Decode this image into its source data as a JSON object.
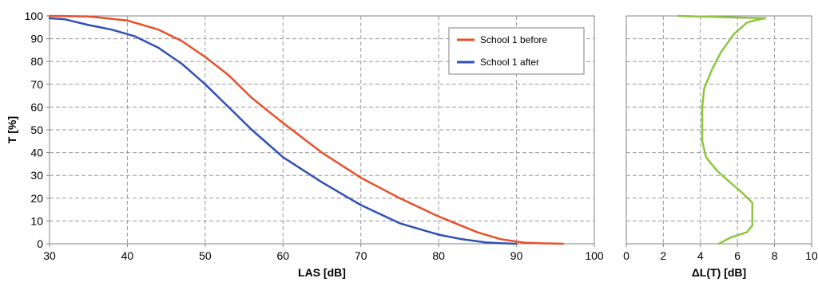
{
  "chart_data": [
    {
      "type": "line",
      "xlabel": "LAS [dB]",
      "ylabel": "T [%]",
      "xlim": [
        30,
        100
      ],
      "ylim": [
        0,
        100
      ],
      "x_ticks": [
        "30",
        "40",
        "50",
        "60",
        "70",
        "80",
        "90",
        "100"
      ],
      "y_ticks": [
        "0",
        "10",
        "20",
        "30",
        "40",
        "50",
        "60",
        "70",
        "80",
        "90",
        "100"
      ],
      "grid": true,
      "legend_position": "top-right",
      "series": [
        {
          "name": "School 1 before",
          "color": "#e8502a",
          "points": [
            [
              30,
              100
            ],
            [
              35,
              99.8
            ],
            [
              40,
              98
            ],
            [
              44,
              94
            ],
            [
              47,
              89
            ],
            [
              50,
              82
            ],
            [
              53,
              74
            ],
            [
              56,
              64
            ],
            [
              60,
              53
            ],
            [
              65,
              40
            ],
            [
              70,
              29
            ],
            [
              75,
              20
            ],
            [
              80,
              12
            ],
            [
              85,
              5
            ],
            [
              88,
              2
            ],
            [
              91,
              0.5
            ],
            [
              93,
              0.2
            ],
            [
              96,
              0
            ]
          ]
        },
        {
          "name": "School 1 after",
          "color": "#3050b4",
          "points": [
            [
              30,
              99
            ],
            [
              32,
              98.5
            ],
            [
              35,
              96
            ],
            [
              38,
              94
            ],
            [
              41,
              91
            ],
            [
              44,
              86
            ],
            [
              47,
              79
            ],
            [
              50,
              70
            ],
            [
              53,
              60
            ],
            [
              56,
              50
            ],
            [
              60,
              38
            ],
            [
              65,
              27
            ],
            [
              70,
              17
            ],
            [
              75,
              9
            ],
            [
              80,
              4
            ],
            [
              83,
              2
            ],
            [
              86,
              0.6
            ],
            [
              88,
              0.2
            ],
            [
              90,
              0
            ]
          ]
        }
      ]
    },
    {
      "type": "line",
      "xlabel": "ΔL(T) [dB]",
      "ylabel": "",
      "xlim": [
        0,
        10
      ],
      "ylim": [
        0,
        100
      ],
      "x_ticks": [
        "0",
        "2",
        "4",
        "6",
        "8",
        "10"
      ],
      "grid": true,
      "series": [
        {
          "name": "",
          "color": "#8cc63f",
          "points": [
            [
              5,
              0
            ],
            [
              5.7,
              3
            ],
            [
              6.5,
              5
            ],
            [
              6.8,
              8
            ],
            [
              6.8,
              18
            ],
            [
              6.3,
              22
            ],
            [
              5.6,
              27
            ],
            [
              4.9,
              32
            ],
            [
              4.3,
              38
            ],
            [
              4.1,
              45
            ],
            [
              4.1,
              60
            ],
            [
              4.2,
              68
            ],
            [
              4.6,
              76
            ],
            [
              5.1,
              84
            ],
            [
              5.8,
              92
            ],
            [
              6.5,
              97
            ],
            [
              6.9,
              98
            ],
            [
              7.5,
              99
            ],
            [
              2.8,
              100
            ]
          ]
        }
      ]
    }
  ]
}
